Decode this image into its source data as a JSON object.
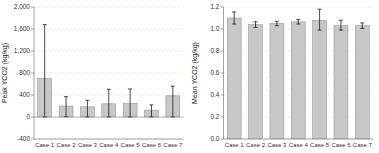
{
  "chart_data": [
    {
      "type": "bar",
      "categories": [
        "Case 1",
        "Case 2",
        "Case 3",
        "Case 4",
        "Case 5",
        "Case 6",
        "Case 7"
      ],
      "values": [
        700,
        200,
        185,
        240,
        245,
        125,
        385
      ],
      "error_up": [
        980,
        170,
        120,
        265,
        265,
        95,
        175
      ],
      "error_down": [
        700,
        195,
        185,
        240,
        245,
        125,
        385
      ],
      "color": "#c8c8c8",
      "ylabel": "Peak YCO2 (kg/kg)",
      "ylim": [
        -400,
        2000
      ],
      "yticks": [
        -400,
        0,
        400,
        800,
        {
          "value": 1200,
          "label": "1,200"
        },
        {
          "value": 1600,
          "label": "1,600"
        },
        {
          "value": 2000,
          "label": "2,000"
        }
      ],
      "grid": true
    },
    {
      "type": "bar",
      "categories": [
        "Case 1",
        "Case 2",
        "Case 3",
        "Case 4",
        "Case 5",
        "Case 6",
        "Case 7"
      ],
      "values": [
        1.1,
        1.04,
        1.05,
        1.065,
        1.08,
        1.03,
        1.03
      ],
      "error_up": [
        0.055,
        0.025,
        0.02,
        0.02,
        0.1,
        0.05,
        0.025
      ],
      "error_down": [
        0.055,
        0.025,
        0.02,
        0.02,
        0.09,
        0.04,
        0.025
      ],
      "color": "#c8c8c8",
      "ylabel": "Mean YCO2 (kg/kg)",
      "ylim": [
        0.0,
        1.2
      ],
      "yticks": [
        {
          "value": 0.0,
          "label": "0.0"
        },
        0.2,
        0.4,
        0.6,
        0.8,
        {
          "value": 1.0,
          "label": "1.0"
        },
        1.2
      ],
      "grid": true
    }
  ]
}
